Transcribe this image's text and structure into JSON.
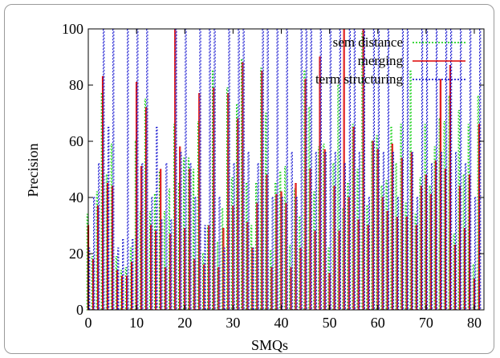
{
  "chart_data": {
    "type": "bar",
    "title": "",
    "xlabel": "SMQs",
    "ylabel": "Precision",
    "xlim": [
      0,
      82
    ],
    "ylim": [
      0,
      100
    ],
    "xticks": [
      0,
      10,
      20,
      30,
      40,
      50,
      60,
      70,
      80
    ],
    "yticks": [
      0,
      20,
      40,
      60,
      80,
      100
    ],
    "grid": false,
    "legend_position": "top-right",
    "x": [
      0,
      1,
      2,
      3,
      4,
      5,
      6,
      7,
      8,
      9,
      10,
      11,
      12,
      13,
      14,
      15,
      16,
      17,
      18,
      19,
      20,
      21,
      22,
      23,
      24,
      25,
      26,
      27,
      28,
      29,
      30,
      31,
      32,
      33,
      34,
      35,
      36,
      37,
      38,
      39,
      40,
      41,
      42,
      43,
      44,
      45,
      46,
      47,
      48,
      49,
      50,
      51,
      52,
      53,
      54,
      55,
      56,
      57,
      58,
      59,
      60,
      61,
      62,
      63,
      64,
      65,
      66,
      67,
      68,
      69,
      70,
      71,
      72,
      73,
      74,
      75,
      76,
      77,
      78,
      79,
      80,
      81
    ],
    "series": [
      {
        "name": "sem distance",
        "color": "#00cc00",
        "dash": "2,2",
        "values": [
          34,
          19,
          42,
          77,
          48,
          59,
          19,
          14,
          15,
          22,
          60,
          35,
          75,
          35,
          41,
          49,
          35,
          43,
          66,
          45,
          54,
          54,
          50,
          67,
          20,
          30,
          85,
          24,
          36,
          79,
          47,
          73,
          89,
          45,
          30,
          45,
          86,
          70,
          21,
          45,
          49,
          51,
          23,
          43,
          33,
          85,
          72,
          42,
          58,
          59,
          22,
          52,
          80,
          36,
          45,
          66,
          50,
          99,
          37,
          60,
          62,
          44,
          46,
          65,
          52,
          66,
          38,
          85,
          34,
          47,
          66,
          44,
          58,
          68,
          67,
          76,
          27,
          71,
          48,
          66,
          16,
          76
        ]
      },
      {
        "name": "merging",
        "color": "#dd0000",
        "dash": "",
        "values": [
          30,
          18,
          37,
          83,
          45,
          44,
          14,
          12,
          12,
          17,
          81,
          51,
          72,
          30,
          28,
          50,
          15,
          27,
          100,
          58,
          29,
          50,
          18,
          77,
          16,
          30,
          79,
          15,
          29,
          77,
          37,
          68,
          88,
          31,
          22,
          38,
          85,
          48,
          15,
          41,
          42,
          38,
          15,
          45,
          22,
          82,
          50,
          28,
          90,
          57,
          13,
          44,
          28,
          100,
          40,
          65,
          32,
          100,
          30,
          60,
          57,
          40,
          35,
          59,
          33,
          54,
          33,
          56,
          30,
          44,
          48,
          41,
          53,
          82,
          50,
          87,
          23,
          44,
          29,
          48,
          11,
          66
        ]
      },
      {
        "name": "term structuring",
        "color": "#0000cc",
        "dash": "2,2",
        "values": [
          22,
          40,
          52,
          100,
          65,
          100,
          22,
          25,
          100,
          25,
          100,
          52,
          100,
          40,
          65,
          32,
          52,
          32,
          100,
          56,
          100,
          52,
          40,
          100,
          30,
          100,
          100,
          40,
          22,
          100,
          52,
          100,
          100,
          56,
          22,
          52,
          100,
          100,
          40,
          100,
          40,
          100,
          56,
          40,
          100,
          100,
          100,
          56,
          100,
          56,
          100,
          56,
          100,
          52,
          100,
          100,
          56,
          100,
          40,
          100,
          100,
          56,
          100,
          56,
          40,
          100,
          100,
          56,
          40,
          100,
          100,
          52,
          100,
          56,
          100,
          100,
          56,
          100,
          52,
          100,
          40,
          100
        ]
      }
    ]
  }
}
